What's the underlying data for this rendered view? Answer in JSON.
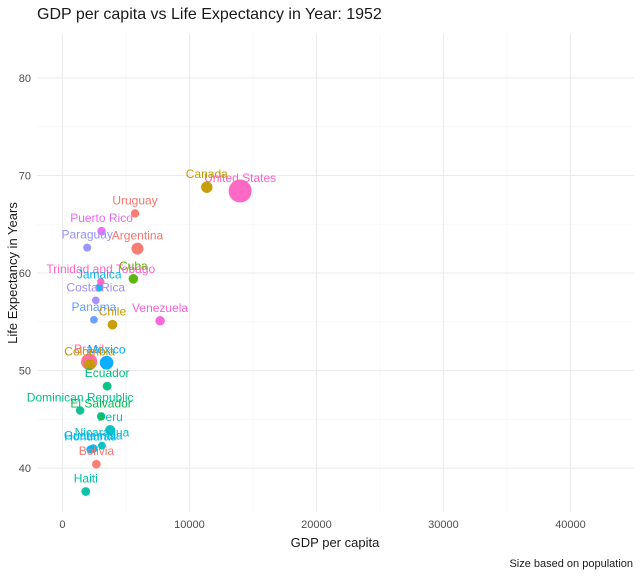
{
  "chart_data": {
    "type": "scatter",
    "title": "GDP per capita vs Life Expectancy in Year: 1952",
    "xlabel": "GDP per capita",
    "ylabel": "Life Expectancy in Years",
    "caption": "Size based on population",
    "xlim": [
      -2000,
      45000
    ],
    "ylim": [
      35.5,
      84.5
    ],
    "x_ticks": [
      0,
      10000,
      20000,
      30000,
      40000
    ],
    "y_ticks": [
      40,
      50,
      60,
      70,
      80
    ],
    "grid": true,
    "legend": "none",
    "points": [
      {
        "label": "United States",
        "x": 13990,
        "y": 68.4,
        "pop": 157.55,
        "color": "#FF61C3"
      },
      {
        "label": "Canada",
        "x": 11367,
        "y": 68.8,
        "pop": 14.79,
        "color": "#C49A00"
      },
      {
        "label": "Uruguay",
        "x": 5717,
        "y": 66.1,
        "pop": 2.25,
        "color": "#F8766D"
      },
      {
        "label": "Puerto Rico",
        "x": 3082,
        "y": 64.3,
        "pop": 2.23,
        "color": "#E76BF3"
      },
      {
        "label": "Paraguay",
        "x": 1952,
        "y": 62.6,
        "pop": 1.56,
        "color": "#9590FF"
      },
      {
        "label": "Argentina",
        "x": 5911,
        "y": 62.5,
        "pop": 17.88,
        "color": "#F8766D"
      },
      {
        "label": "Cuba",
        "x": 5587,
        "y": 59.4,
        "pop": 6.01,
        "color": "#53B400"
      },
      {
        "label": "Trinidad and Tobago",
        "x": 3023,
        "y": 59.1,
        "pop": 0.66,
        "color": "#FF61C3"
      },
      {
        "label": "Jamaica",
        "x": 2899,
        "y": 58.5,
        "pop": 1.43,
        "color": "#00B6EB"
      },
      {
        "label": "Costa Rica",
        "x": 2627,
        "y": 57.2,
        "pop": 0.93,
        "color": "#A58AFF"
      },
      {
        "label": "Panama",
        "x": 2480,
        "y": 55.2,
        "pop": 0.94,
        "color": "#619CFF"
      },
      {
        "label": "Chile",
        "x": 3940,
        "y": 54.7,
        "pop": 6.38,
        "color": "#C49A00"
      },
      {
        "label": "Venezuela",
        "x": 7690,
        "y": 55.1,
        "pop": 5.44,
        "color": "#FB61D7"
      },
      {
        "label": "Brazil",
        "x": 2109,
        "y": 50.9,
        "pop": 56.6,
        "color": "#FF6A98"
      },
      {
        "label": "Mexico",
        "x": 3478,
        "y": 50.8,
        "pop": 30.14,
        "color": "#00A9FF"
      },
      {
        "label": "Colombia",
        "x": 2144,
        "y": 50.6,
        "pop": 12.35,
        "color": "#C49A00"
      },
      {
        "label": "Ecuador",
        "x": 3522,
        "y": 48.4,
        "pop": 3.55,
        "color": "#00BF7D"
      },
      {
        "label": "Dominican Republic",
        "x": 1398,
        "y": 45.9,
        "pop": 2.49,
        "color": "#00C08B"
      },
      {
        "label": "El Salvador",
        "x": 3048,
        "y": 45.3,
        "pop": 2.04,
        "color": "#00BB4E"
      },
      {
        "label": "Peru",
        "x": 3759,
        "y": 43.9,
        "pop": 8.03,
        "color": "#00BFC4"
      },
      {
        "label": "Nicaragua",
        "x": 3112,
        "y": 42.3,
        "pop": 1.17,
        "color": "#00BFC4"
      },
      {
        "label": "Honduras",
        "x": 2195,
        "y": 41.9,
        "pop": 1.52,
        "color": "#00B4F0"
      },
      {
        "label": "Guatemala",
        "x": 2428,
        "y": 42.0,
        "pop": 3.15,
        "color": "#00B8E7"
      },
      {
        "label": "Bolivia",
        "x": 2677,
        "y": 40.4,
        "pop": 2.88,
        "color": "#F8766D"
      },
      {
        "label": "Haiti",
        "x": 1840,
        "y": 37.6,
        "pop": 3.2,
        "color": "#00C1A3"
      }
    ]
  }
}
